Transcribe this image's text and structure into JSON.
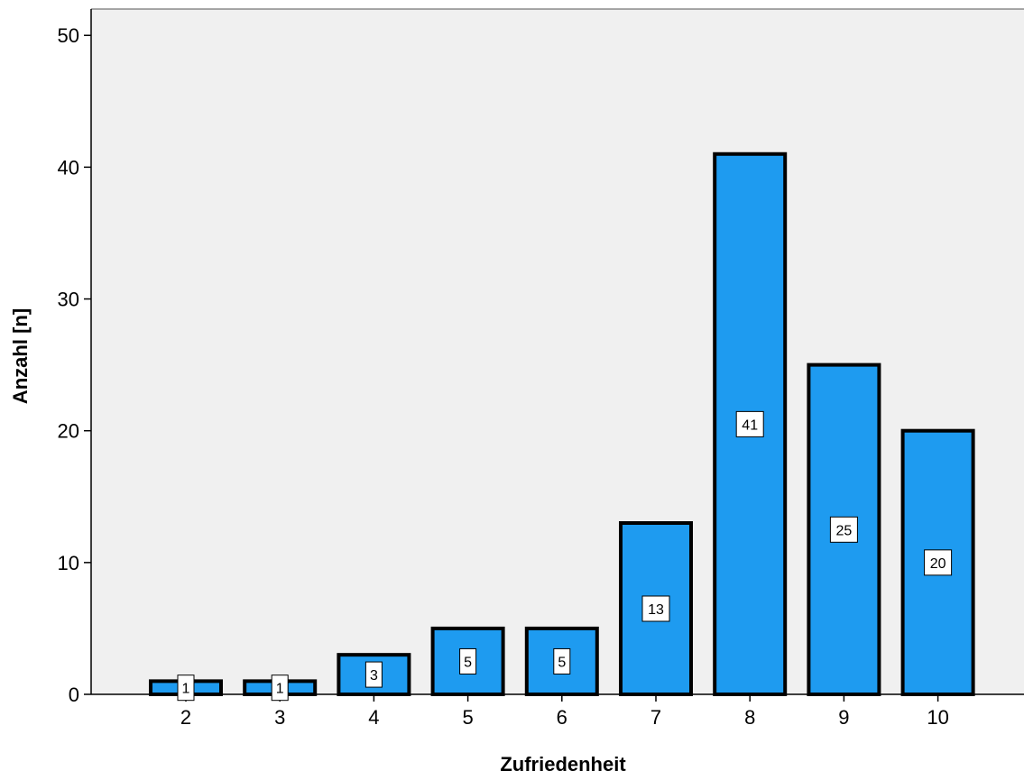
{
  "chart_data": {
    "type": "bar",
    "title": "",
    "xlabel": "Zufriedenheit",
    "ylabel": "Anzahl [n]",
    "categories": [
      "2",
      "3",
      "4",
      "5",
      "6",
      "7",
      "8",
      "9",
      "10"
    ],
    "values": [
      1,
      1,
      3,
      5,
      5,
      13,
      41,
      25,
      20
    ],
    "data_labels": [
      "1",
      "1",
      "3",
      "5",
      "5",
      "13",
      "41",
      "25",
      "20"
    ],
    "ylim": [
      0,
      52
    ],
    "yticks": [
      0,
      10,
      20,
      30,
      40,
      50
    ],
    "ytick_labels": [
      "0",
      "10",
      "20",
      "30",
      "40",
      "50"
    ],
    "grid": false,
    "legend": "none",
    "colors": {
      "bar_fill": "#1E9BF0",
      "bar_stroke": "#000000",
      "plot_background": "#F0F0F0",
      "label_box": "#FFFFFF"
    }
  }
}
